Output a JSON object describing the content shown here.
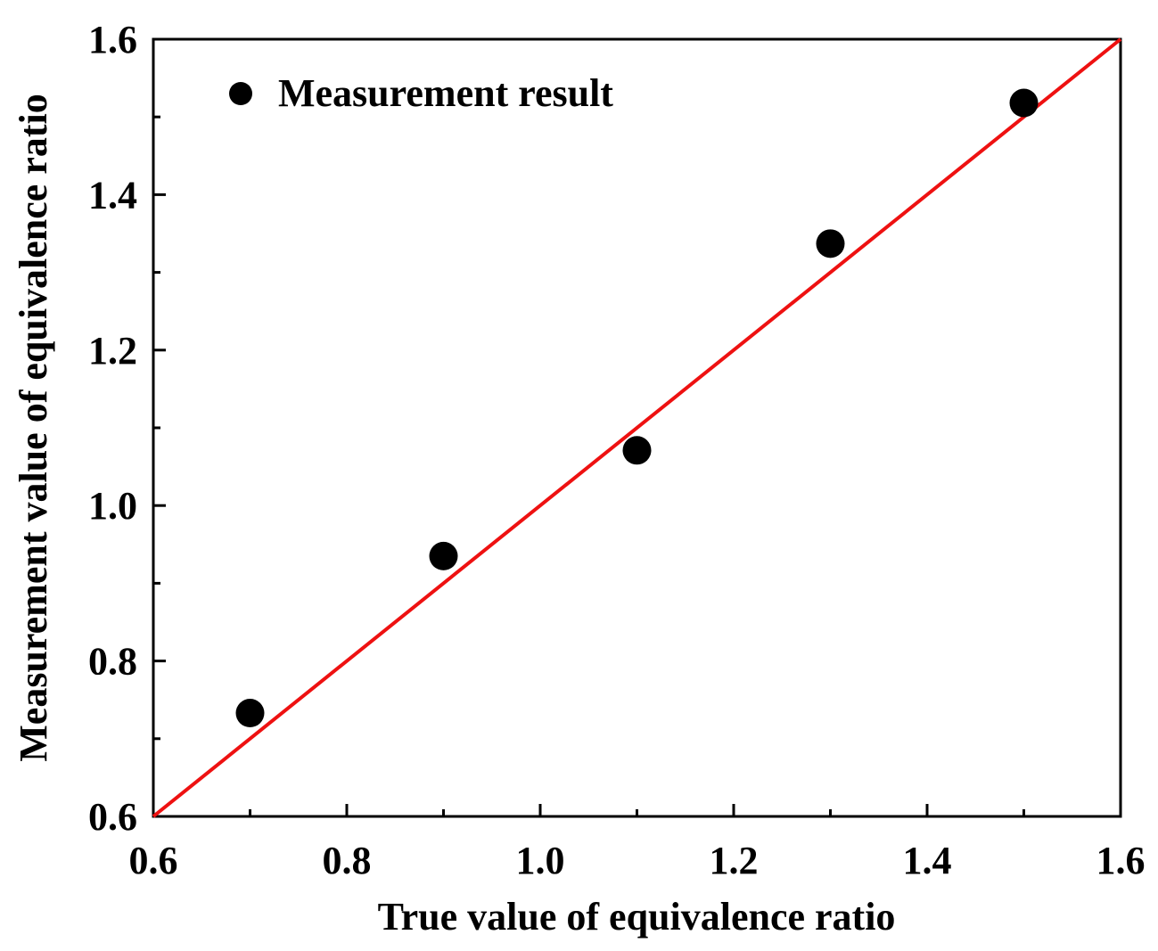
{
  "chart_data": {
    "type": "scatter",
    "title": "",
    "xlabel": "True value of equivalence ratio",
    "ylabel": "Measurement value of equivalence ratio",
    "xlim": [
      0.6,
      1.6
    ],
    "ylim": [
      0.6,
      1.6
    ],
    "x_ticks": [
      "0.6",
      "0.8",
      "1.0",
      "1.2",
      "1.4",
      "1.6"
    ],
    "y_ticks": [
      "0.6",
      "0.8",
      "1.0",
      "1.2",
      "1.4",
      "1.6"
    ],
    "series": [
      {
        "name": "Measurement result",
        "marker": "circle",
        "color": "#000000",
        "x": [
          0.7,
          0.9,
          1.1,
          1.3,
          1.5
        ],
        "y": [
          0.733,
          0.935,
          1.071,
          1.337,
          1.518
        ]
      }
    ],
    "reference_line": {
      "name": "y = x",
      "color": "#ee1111",
      "x": [
        0.6,
        1.6
      ],
      "y": [
        0.6,
        1.6
      ]
    },
    "legend_position": "top-left",
    "grid": false
  }
}
